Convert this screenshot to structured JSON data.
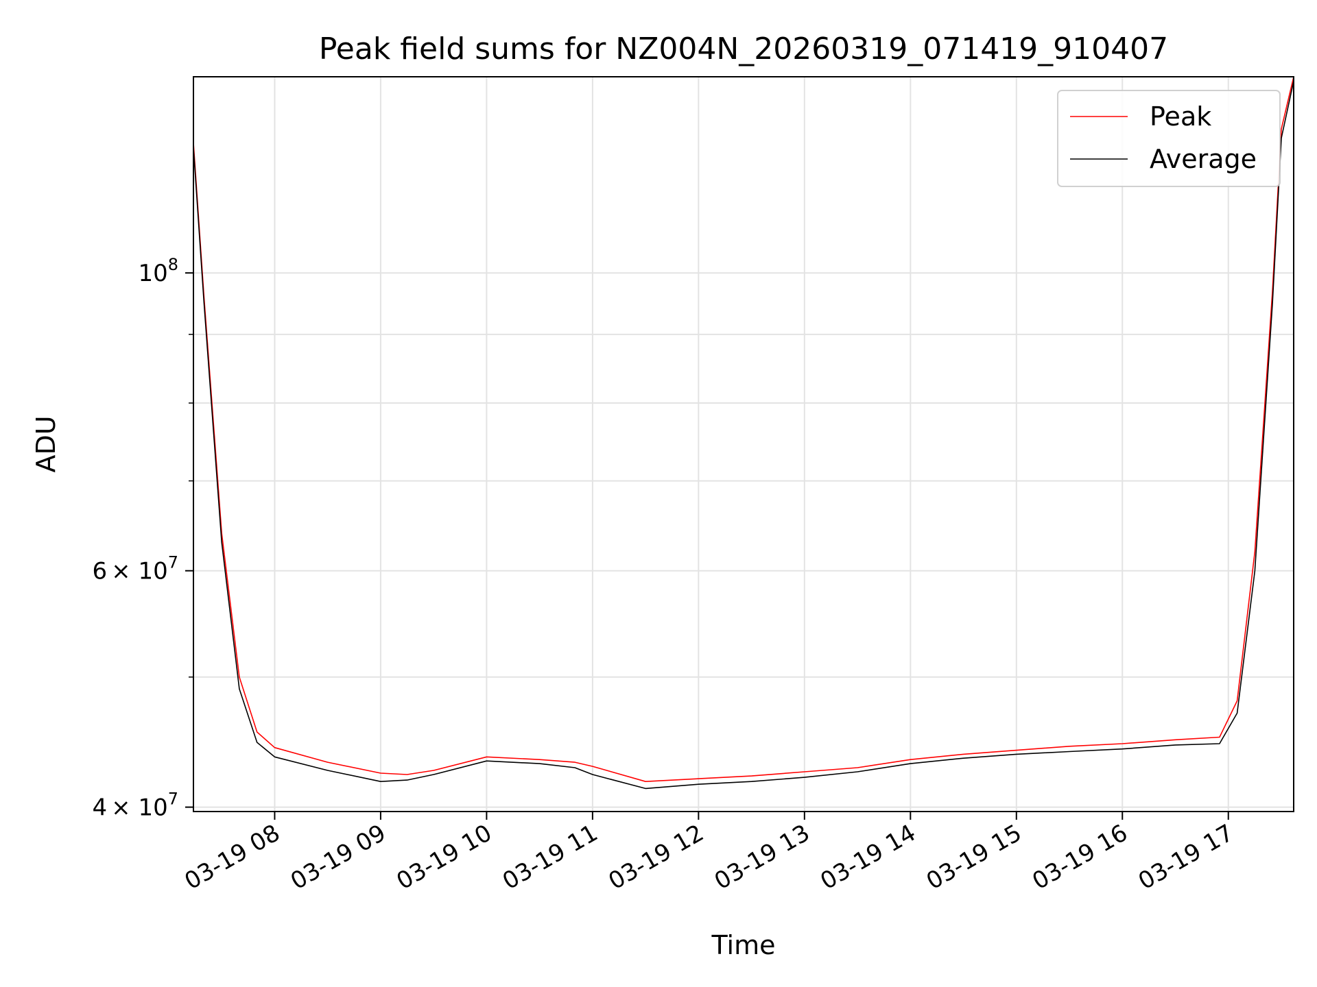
{
  "chart_data": {
    "type": "line",
    "title": "Peak field sums for NZ004N_20260319_071419_910407",
    "xlabel": "Time",
    "ylabel": "ADU",
    "yscale": "log",
    "grid": true,
    "legend_position": "top-right",
    "xlim": [
      "2026-03-19 07:14",
      "2026-03-19 17:37"
    ],
    "ylim": [
      39700000,
      140000000
    ],
    "x_ticks": [
      "03-19 08",
      "03-19 09",
      "03-19 10",
      "03-19 11",
      "03-19 12",
      "03-19 13",
      "03-19 14",
      "03-19 15",
      "03-19 16",
      "03-19 17"
    ],
    "y_ticks": [
      {
        "value": 40000000,
        "base": "4",
        "exp": "7",
        "times": "× 10"
      },
      {
        "value": 60000000,
        "base": "6",
        "exp": "7",
        "times": "× 10"
      },
      {
        "value": 100000000,
        "base": "10",
        "exp": "8",
        "times": ""
      }
    ],
    "y_minor_ticks": [
      50000000,
      70000000,
      80000000,
      90000000
    ],
    "series": [
      {
        "name": "Peak",
        "color": "#ff0000",
        "x": [
          "2026-03-19 07:14",
          "2026-03-19 07:20",
          "2026-03-19 07:30",
          "2026-03-19 07:40",
          "2026-03-19 07:50",
          "2026-03-19 08:00",
          "2026-03-19 08:30",
          "2026-03-19 09:00",
          "2026-03-19 09:15",
          "2026-03-19 09:30",
          "2026-03-19 10:00",
          "2026-03-19 10:30",
          "2026-03-19 10:50",
          "2026-03-19 11:00",
          "2026-03-19 11:30",
          "2026-03-19 12:00",
          "2026-03-19 12:30",
          "2026-03-19 13:00",
          "2026-03-19 13:30",
          "2026-03-19 14:00",
          "2026-03-19 14:30",
          "2026-03-19 15:00",
          "2026-03-19 15:30",
          "2026-03-19 16:00",
          "2026-03-19 16:30",
          "2026-03-19 16:55",
          "2026-03-19 17:05",
          "2026-03-19 17:15",
          "2026-03-19 17:25",
          "2026-03-19 17:30",
          "2026-03-19 17:37"
        ],
        "y": [
          125000000,
          96000000,
          64000000,
          50000000,
          45500000,
          44300000,
          43200000,
          42400000,
          42300000,
          42600000,
          43600000,
          43400000,
          43200000,
          42900000,
          41800000,
          42000000,
          42200000,
          42500000,
          42800000,
          43400000,
          43800000,
          44100000,
          44400000,
          44600000,
          44900000,
          45100000,
          48000000,
          62000000,
          97000000,
          128000000,
          140000000
        ]
      },
      {
        "name": "Average",
        "color": "#000000",
        "x": [
          "2026-03-19 07:14",
          "2026-03-19 07:20",
          "2026-03-19 07:30",
          "2026-03-19 07:40",
          "2026-03-19 07:50",
          "2026-03-19 08:00",
          "2026-03-19 08:30",
          "2026-03-19 09:00",
          "2026-03-19 09:15",
          "2026-03-19 09:30",
          "2026-03-19 10:00",
          "2026-03-19 10:30",
          "2026-03-19 10:50",
          "2026-03-19 11:00",
          "2026-03-19 11:30",
          "2026-03-19 12:00",
          "2026-03-19 12:30",
          "2026-03-19 13:00",
          "2026-03-19 13:30",
          "2026-03-19 14:00",
          "2026-03-19 14:30",
          "2026-03-19 15:00",
          "2026-03-19 15:30",
          "2026-03-19 16:00",
          "2026-03-19 16:30",
          "2026-03-19 16:55",
          "2026-03-19 17:05",
          "2026-03-19 17:15",
          "2026-03-19 17:25",
          "2026-03-19 17:30",
          "2026-03-19 17:37"
        ],
        "y": [
          124000000,
          95000000,
          63000000,
          49000000,
          44700000,
          43600000,
          42600000,
          41800000,
          41900000,
          42300000,
          43300000,
          43100000,
          42800000,
          42300000,
          41300000,
          41600000,
          41800000,
          42100000,
          42500000,
          43100000,
          43500000,
          43800000,
          44000000,
          44200000,
          44500000,
          44600000,
          47000000,
          60000000,
          95000000,
          126000000,
          139000000
        ]
      }
    ]
  }
}
